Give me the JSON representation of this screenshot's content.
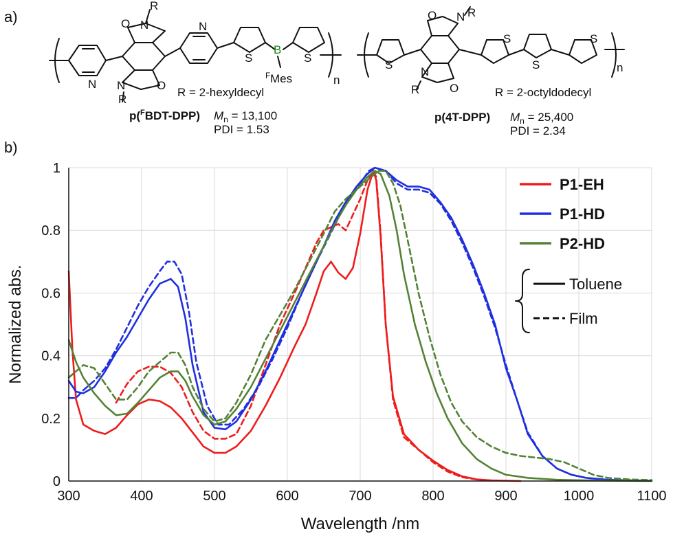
{
  "panels": {
    "a": "a)",
    "b": "b)"
  },
  "structures": {
    "left": {
      "name_prefix": "p(",
      "name_superscript": "F",
      "name_rest": "BDT-DPP)",
      "r_def": "R = 2-hexyldecyl",
      "mn_label": "M",
      "mn_sub": "n",
      "mn_value": " = 13,100",
      "pdi": "PDI = 1.53",
      "atoms": {
        "R": "R",
        "N": "N",
        "O": "O",
        "S": "S",
        "B": "B",
        "F": "F",
        "Mes": "Mes",
        "n": "n"
      }
    },
    "right": {
      "name": "p(4T-DPP)",
      "r_def": "R = 2-octyldodecyl",
      "mn_label": "M",
      "mn_sub": "n",
      "mn_value": " = 25,400",
      "pdi": "PDI = 2.34"
    }
  },
  "chart_data": {
    "type": "line",
    "xlabel": "Wavelength /nm",
    "ylabel": "Normalized abs.",
    "xlim": [
      300,
      1100
    ],
    "ylim": [
      0,
      1
    ],
    "xticks": [
      300,
      400,
      500,
      600,
      700,
      800,
      900,
      1000,
      1100
    ],
    "yticks": [
      0,
      0.2,
      0.4,
      0.6,
      0.8,
      1
    ],
    "grid": true,
    "legend": {
      "position": "top-right",
      "series": [
        "P1-EH",
        "P1-HD",
        "P2-HD"
      ],
      "style_group": [
        "Toluene",
        "Film"
      ]
    },
    "series": [
      {
        "name": "P1-EH",
        "medium": "Toluene",
        "color": "#ee1c1c",
        "dash": false,
        "points": [
          [
            300,
            0.67
          ],
          [
            305,
            0.42
          ],
          [
            310,
            0.26
          ],
          [
            320,
            0.18
          ],
          [
            335,
            0.16
          ],
          [
            350,
            0.15
          ],
          [
            365,
            0.17
          ],
          [
            380,
            0.21
          ],
          [
            395,
            0.245
          ],
          [
            410,
            0.26
          ],
          [
            425,
            0.255
          ],
          [
            440,
            0.235
          ],
          [
            455,
            0.2
          ],
          [
            470,
            0.155
          ],
          [
            485,
            0.11
          ],
          [
            500,
            0.09
          ],
          [
            515,
            0.09
          ],
          [
            530,
            0.11
          ],
          [
            550,
            0.16
          ],
          [
            570,
            0.24
          ],
          [
            590,
            0.33
          ],
          [
            610,
            0.43
          ],
          [
            625,
            0.5
          ],
          [
            640,
            0.6
          ],
          [
            650,
            0.67
          ],
          [
            660,
            0.7
          ],
          [
            670,
            0.665
          ],
          [
            680,
            0.645
          ],
          [
            690,
            0.68
          ],
          [
            700,
            0.79
          ],
          [
            710,
            0.93
          ],
          [
            718,
            0.99
          ],
          [
            722,
            0.96
          ],
          [
            728,
            0.78
          ],
          [
            735,
            0.5
          ],
          [
            745,
            0.27
          ],
          [
            760,
            0.15
          ],
          [
            780,
            0.1
          ],
          [
            800,
            0.065
          ],
          [
            820,
            0.035
          ],
          [
            840,
            0.015
          ],
          [
            860,
            0.005
          ],
          [
            880,
            0.002
          ],
          [
            920,
            0
          ]
        ]
      },
      {
        "name": "P1-EH",
        "medium": "Film",
        "color": "#ee1c1c",
        "dash": true,
        "points": [
          [
            365,
            0.25
          ],
          [
            380,
            0.31
          ],
          [
            395,
            0.35
          ],
          [
            410,
            0.365
          ],
          [
            425,
            0.365
          ],
          [
            440,
            0.345
          ],
          [
            455,
            0.3
          ],
          [
            470,
            0.22
          ],
          [
            485,
            0.16
          ],
          [
            500,
            0.135
          ],
          [
            515,
            0.135
          ],
          [
            530,
            0.15
          ],
          [
            550,
            0.24
          ],
          [
            570,
            0.37
          ],
          [
            590,
            0.5
          ],
          [
            610,
            0.6
          ],
          [
            625,
            0.68
          ],
          [
            640,
            0.76
          ],
          [
            650,
            0.8
          ],
          [
            660,
            0.81
          ],
          [
            670,
            0.82
          ],
          [
            680,
            0.8
          ],
          [
            690,
            0.85
          ],
          [
            700,
            0.9
          ],
          [
            710,
            0.96
          ],
          [
            718,
            0.99
          ],
          [
            722,
            0.97
          ],
          [
            728,
            0.79
          ],
          [
            735,
            0.5
          ],
          [
            745,
            0.26
          ],
          [
            760,
            0.14
          ],
          [
            780,
            0.1
          ],
          [
            800,
            0.06
          ],
          [
            820,
            0.03
          ],
          [
            840,
            0.012
          ],
          [
            860,
            0.005
          ],
          [
            880,
            0.001
          ]
        ]
      },
      {
        "name": "P1-HD",
        "medium": "Toluene",
        "color": "#1f2fe0",
        "dash": false,
        "points": [
          [
            300,
            0.32
          ],
          [
            310,
            0.285
          ],
          [
            320,
            0.28
          ],
          [
            335,
            0.3
          ],
          [
            350,
            0.35
          ],
          [
            365,
            0.41
          ],
          [
            380,
            0.46
          ],
          [
            395,
            0.52
          ],
          [
            410,
            0.58
          ],
          [
            425,
            0.63
          ],
          [
            440,
            0.645
          ],
          [
            450,
            0.62
          ],
          [
            460,
            0.52
          ],
          [
            470,
            0.37
          ],
          [
            485,
            0.22
          ],
          [
            500,
            0.17
          ],
          [
            515,
            0.165
          ],
          [
            530,
            0.19
          ],
          [
            550,
            0.26
          ],
          [
            570,
            0.35
          ],
          [
            590,
            0.45
          ],
          [
            610,
            0.55
          ],
          [
            630,
            0.65
          ],
          [
            650,
            0.75
          ],
          [
            665,
            0.83
          ],
          [
            680,
            0.89
          ],
          [
            695,
            0.94
          ],
          [
            710,
            0.98
          ],
          [
            720,
            1.0
          ],
          [
            735,
            0.99
          ],
          [
            750,
            0.96
          ],
          [
            765,
            0.94
          ],
          [
            780,
            0.94
          ],
          [
            795,
            0.93
          ],
          [
            810,
            0.89
          ],
          [
            825,
            0.84
          ],
          [
            840,
            0.77
          ],
          [
            855,
            0.69
          ],
          [
            870,
            0.6
          ],
          [
            885,
            0.5
          ],
          [
            900,
            0.36
          ],
          [
            915,
            0.26
          ],
          [
            930,
            0.15
          ],
          [
            950,
            0.08
          ],
          [
            970,
            0.04
          ],
          [
            990,
            0.02
          ],
          [
            1010,
            0.01
          ],
          [
            1040,
            0.004
          ],
          [
            1070,
            0.002
          ],
          [
            1100,
            0.001
          ]
        ]
      },
      {
        "name": "P1-HD",
        "medium": "Film",
        "color": "#1f2fe0",
        "dash": true,
        "points": [
          [
            300,
            0.265
          ],
          [
            310,
            0.265
          ],
          [
            320,
            0.29
          ],
          [
            335,
            0.32
          ],
          [
            350,
            0.36
          ],
          [
            365,
            0.42
          ],
          [
            380,
            0.49
          ],
          [
            395,
            0.56
          ],
          [
            410,
            0.62
          ],
          [
            425,
            0.67
          ],
          [
            435,
            0.7
          ],
          [
            445,
            0.7
          ],
          [
            455,
            0.66
          ],
          [
            465,
            0.54
          ],
          [
            475,
            0.38
          ],
          [
            490,
            0.24
          ],
          [
            505,
            0.18
          ],
          [
            520,
            0.18
          ],
          [
            540,
            0.23
          ],
          [
            560,
            0.3
          ],
          [
            580,
            0.39
          ],
          [
            600,
            0.49
          ],
          [
            620,
            0.6
          ],
          [
            640,
            0.7
          ],
          [
            655,
            0.77
          ],
          [
            670,
            0.84
          ],
          [
            685,
            0.9
          ],
          [
            700,
            0.95
          ],
          [
            712,
            0.99
          ],
          [
            720,
            1.0
          ],
          [
            735,
            0.99
          ],
          [
            750,
            0.95
          ],
          [
            765,
            0.93
          ],
          [
            780,
            0.93
          ],
          [
            795,
            0.92
          ],
          [
            810,
            0.885
          ],
          [
            825,
            0.83
          ],
          [
            840,
            0.76
          ],
          [
            855,
            0.68
          ],
          [
            870,
            0.59
          ],
          [
            885,
            0.49
          ],
          [
            900,
            0.37
          ],
          [
            915,
            0.26
          ],
          [
            930,
            0.155
          ],
          [
            950,
            0.08
          ],
          [
            970,
            0.04
          ],
          [
            990,
            0.02
          ],
          [
            1010,
            0.01
          ],
          [
            1040,
            0.004
          ],
          [
            1070,
            0.002
          ],
          [
            1100,
            0.001
          ]
        ]
      },
      {
        "name": "P2-HD",
        "medium": "Toluene",
        "color": "#548235",
        "dash": false,
        "points": [
          [
            300,
            0.45
          ],
          [
            310,
            0.38
          ],
          [
            320,
            0.33
          ],
          [
            335,
            0.28
          ],
          [
            350,
            0.24
          ],
          [
            365,
            0.21
          ],
          [
            380,
            0.215
          ],
          [
            395,
            0.25
          ],
          [
            410,
            0.29
          ],
          [
            425,
            0.33
          ],
          [
            440,
            0.35
          ],
          [
            450,
            0.35
          ],
          [
            460,
            0.32
          ],
          [
            470,
            0.27
          ],
          [
            485,
            0.21
          ],
          [
            500,
            0.18
          ],
          [
            515,
            0.19
          ],
          [
            530,
            0.23
          ],
          [
            550,
            0.3
          ],
          [
            570,
            0.39
          ],
          [
            590,
            0.48
          ],
          [
            610,
            0.57
          ],
          [
            630,
            0.66
          ],
          [
            650,
            0.75
          ],
          [
            665,
            0.82
          ],
          [
            680,
            0.88
          ],
          [
            695,
            0.93
          ],
          [
            710,
            0.97
          ],
          [
            720,
            0.99
          ],
          [
            728,
            0.98
          ],
          [
            740,
            0.91
          ],
          [
            750,
            0.8
          ],
          [
            760,
            0.66
          ],
          [
            775,
            0.5
          ],
          [
            790,
            0.38
          ],
          [
            805,
            0.28
          ],
          [
            820,
            0.2
          ],
          [
            840,
            0.12
          ],
          [
            860,
            0.07
          ],
          [
            880,
            0.04
          ],
          [
            900,
            0.02
          ],
          [
            930,
            0.01
          ],
          [
            970,
            0.004
          ],
          [
            1010,
            0.002
          ],
          [
            1050,
            0.001
          ],
          [
            1100,
            0
          ]
        ]
      },
      {
        "name": "P2-HD",
        "medium": "Film",
        "color": "#548235",
        "dash": true,
        "points": [
          [
            300,
            0.33
          ],
          [
            310,
            0.35
          ],
          [
            320,
            0.37
          ],
          [
            335,
            0.36
          ],
          [
            350,
            0.31
          ],
          [
            365,
            0.26
          ],
          [
            380,
            0.26
          ],
          [
            395,
            0.3
          ],
          [
            410,
            0.35
          ],
          [
            425,
            0.38
          ],
          [
            440,
            0.41
          ],
          [
            450,
            0.41
          ],
          [
            460,
            0.37
          ],
          [
            470,
            0.3
          ],
          [
            485,
            0.23
          ],
          [
            500,
            0.19
          ],
          [
            515,
            0.2
          ],
          [
            530,
            0.25
          ],
          [
            550,
            0.34
          ],
          [
            570,
            0.45
          ],
          [
            590,
            0.53
          ],
          [
            610,
            0.61
          ],
          [
            630,
            0.7
          ],
          [
            650,
            0.79
          ],
          [
            665,
            0.86
          ],
          [
            680,
            0.9
          ],
          [
            695,
            0.93
          ],
          [
            710,
            0.96
          ],
          [
            725,
            0.99
          ],
          [
            735,
            0.99
          ],
          [
            745,
            0.95
          ],
          [
            755,
            0.88
          ],
          [
            765,
            0.77
          ],
          [
            780,
            0.6
          ],
          [
            795,
            0.46
          ],
          [
            810,
            0.34
          ],
          [
            825,
            0.25
          ],
          [
            840,
            0.19
          ],
          [
            860,
            0.14
          ],
          [
            880,
            0.11
          ],
          [
            900,
            0.09
          ],
          [
            920,
            0.08
          ],
          [
            940,
            0.075
          ],
          [
            960,
            0.07
          ],
          [
            980,
            0.06
          ],
          [
            1000,
            0.04
          ],
          [
            1020,
            0.02
          ],
          [
            1040,
            0.01
          ],
          [
            1070,
            0.005
          ],
          [
            1100,
            0.003
          ]
        ]
      }
    ]
  }
}
